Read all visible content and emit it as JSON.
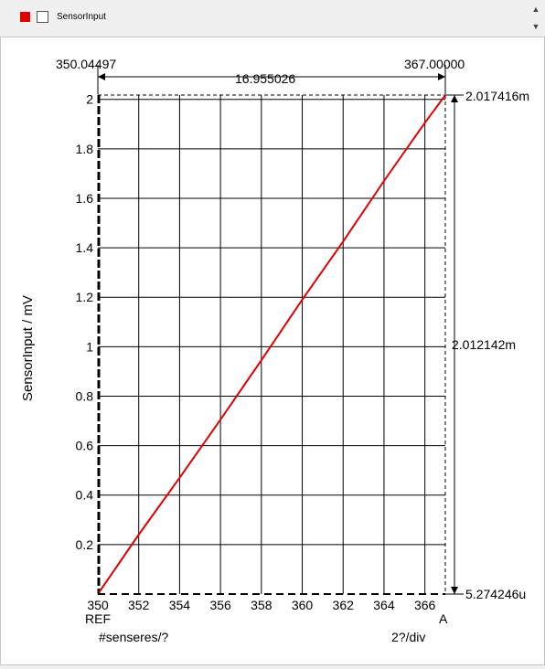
{
  "toolbar": {
    "legend_color": "#e00000",
    "legend_label": "SensorInput",
    "scroll_up_icon": "chevron-up-icon",
    "scroll_down_icon": "chevron-down-icon"
  },
  "cursor": {
    "left_value": "350.04497",
    "right_value": "367.00000",
    "delta_x": "16.955026",
    "top_value": "2.017416m",
    "delta_y": "2.012142m",
    "bottom_value": "5.274246u"
  },
  "axis_captions": {
    "ref": "REF",
    "a": "A",
    "x_unit": "#senseres/?",
    "div": "2?/div"
  },
  "chart_data": {
    "type": "line",
    "ylabel": "SensorInput / mV",
    "xlim": [
      350,
      367
    ],
    "ylim": [
      0,
      2.017416
    ],
    "x_ticks": [
      350,
      352,
      354,
      356,
      358,
      360,
      362,
      364,
      366
    ],
    "y_ticks": [
      0.2,
      0.4,
      0.6,
      0.8,
      1,
      1.2,
      1.4,
      1.6,
      1.8,
      2
    ],
    "grid": true,
    "series": [
      {
        "color": "#e00000",
        "x": [
          350.04497,
          352,
          354,
          356,
          358,
          360,
          362,
          364,
          366,
          367
        ],
        "y": [
          0.005,
          0.24,
          0.47,
          0.705,
          0.945,
          1.19,
          1.425,
          1.67,
          1.905,
          2.017
        ]
      }
    ]
  }
}
